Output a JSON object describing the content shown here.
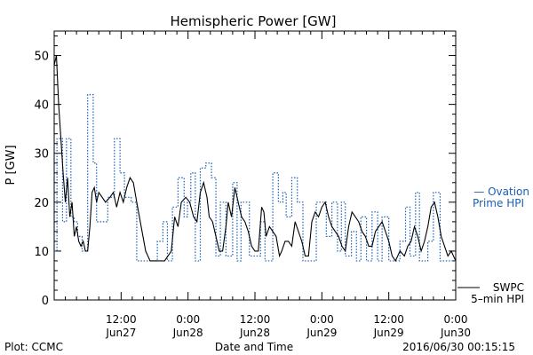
{
  "chart_data": {
    "type": "line",
    "title": "Hemispheric Power [GW]",
    "ylabel": "P [GW]",
    "xlabel": "Date and Time",
    "ylim": [
      0,
      55
    ],
    "yticks": [
      0,
      10,
      20,
      30,
      40,
      50
    ],
    "xlim": [
      0,
      72
    ],
    "xticks": [
      {
        "hour": 12,
        "time": "12:00",
        "date": "Jun27"
      },
      {
        "hour": 24,
        "time": "0:00",
        "date": "Jun28"
      },
      {
        "hour": 36,
        "time": "12:00",
        "date": "Jun28"
      },
      {
        "hour": 48,
        "time": "0:00",
        "date": "Jun29"
      },
      {
        "hour": 60,
        "time": "12:00",
        "date": "Jun29"
      },
      {
        "hour": 72,
        "time": "0:00",
        "date": "Jun30"
      }
    ],
    "series": [
      {
        "name": "Ovation Prime HPI",
        "legend": [
          "— Ovation",
          "Prime HPI"
        ],
        "color": "#1a5fb4",
        "style": "dotted-step",
        "points": [
          [
            0.0,
            10
          ],
          [
            0.5,
            33
          ],
          [
            1.0,
            33
          ],
          [
            1.5,
            16
          ],
          [
            2.2,
            33
          ],
          [
            3.0,
            17
          ],
          [
            3.6,
            16
          ],
          [
            4.2,
            13
          ],
          [
            5.0,
            10
          ],
          [
            6.0,
            42
          ],
          [
            7.0,
            28
          ],
          [
            7.6,
            16
          ],
          [
            8.8,
            16
          ],
          [
            9.6,
            21
          ],
          [
            10.8,
            33
          ],
          [
            11.8,
            26
          ],
          [
            12.6,
            21
          ],
          [
            13.8,
            20
          ],
          [
            14.8,
            8
          ],
          [
            17.2,
            8
          ],
          [
            18.5,
            12
          ],
          [
            19.5,
            16
          ],
          [
            20.3,
            8
          ],
          [
            21.2,
            19
          ],
          [
            22.2,
            25
          ],
          [
            23.3,
            17
          ],
          [
            23.9,
            20
          ],
          [
            24.5,
            26
          ],
          [
            25.3,
            8
          ],
          [
            26.2,
            27
          ],
          [
            27.2,
            28
          ],
          [
            28.2,
            25
          ],
          [
            29.0,
            9
          ],
          [
            29.8,
            20
          ],
          [
            30.8,
            9
          ],
          [
            32.0,
            24
          ],
          [
            32.8,
            8
          ],
          [
            33.5,
            20
          ],
          [
            34.3,
            20
          ],
          [
            35.0,
            9
          ],
          [
            36.0,
            9
          ],
          [
            37.0,
            16
          ],
          [
            37.8,
            8
          ],
          [
            39.2,
            26
          ],
          [
            40.2,
            20
          ],
          [
            41.0,
            22
          ],
          [
            41.6,
            17
          ],
          [
            42.6,
            25
          ],
          [
            43.6,
            20
          ],
          [
            44.6,
            8
          ],
          [
            46.3,
            8
          ],
          [
            47.0,
            20
          ],
          [
            48.0,
            20
          ],
          [
            48.8,
            13
          ],
          [
            49.8,
            20
          ],
          [
            50.8,
            10
          ],
          [
            51.5,
            20
          ],
          [
            52.2,
            9
          ],
          [
            53.3,
            14
          ],
          [
            54.2,
            8
          ],
          [
            55.0,
            17
          ],
          [
            56.0,
            8
          ],
          [
            57.0,
            18
          ],
          [
            58.0,
            8
          ],
          [
            58.8,
            17
          ],
          [
            60.0,
            8
          ],
          [
            61.3,
            8
          ],
          [
            62.0,
            12
          ],
          [
            63.0,
            19
          ],
          [
            63.8,
            9
          ],
          [
            64.8,
            22
          ],
          [
            65.5,
            8
          ],
          [
            67.0,
            12
          ],
          [
            68.0,
            22
          ],
          [
            69.2,
            8
          ],
          [
            72.0,
            8
          ]
        ]
      },
      {
        "name": "SWPC 5-min HPI",
        "legend": [
          "SWPC",
          "5–min HPI"
        ],
        "color": "#000000",
        "style": "solid",
        "points": [
          [
            0.0,
            48
          ],
          [
            0.4,
            50
          ],
          [
            0.8,
            40
          ],
          [
            1.2,
            33
          ],
          [
            1.6,
            26
          ],
          [
            2.0,
            20
          ],
          [
            2.4,
            25
          ],
          [
            2.8,
            17
          ],
          [
            3.2,
            20
          ],
          [
            3.6,
            13
          ],
          [
            4.0,
            15
          ],
          [
            4.4,
            12
          ],
          [
            4.8,
            11
          ],
          [
            5.2,
            12
          ],
          [
            5.6,
            10
          ],
          [
            6.0,
            10
          ],
          [
            6.4,
            15
          ],
          [
            6.8,
            22
          ],
          [
            7.2,
            23
          ],
          [
            7.6,
            20
          ],
          [
            8.0,
            22
          ],
          [
            8.6,
            21
          ],
          [
            9.2,
            20
          ],
          [
            10.0,
            21
          ],
          [
            10.6,
            22
          ],
          [
            11.2,
            19
          ],
          [
            11.8,
            22
          ],
          [
            12.4,
            20
          ],
          [
            13.0,
            23
          ],
          [
            13.6,
            25
          ],
          [
            14.2,
            24
          ],
          [
            14.8,
            20
          ],
          [
            15.6,
            15
          ],
          [
            16.4,
            10
          ],
          [
            17.2,
            8
          ],
          [
            18.5,
            8
          ],
          [
            19.8,
            8
          ],
          [
            20.4,
            9
          ],
          [
            21.0,
            10
          ],
          [
            21.6,
            17
          ],
          [
            22.2,
            15
          ],
          [
            22.8,
            20
          ],
          [
            23.6,
            21
          ],
          [
            24.3,
            20
          ],
          [
            25.0,
            17
          ],
          [
            25.6,
            16
          ],
          [
            26.2,
            22
          ],
          [
            26.8,
            24
          ],
          [
            27.4,
            21
          ],
          [
            27.8,
            17
          ],
          [
            28.4,
            16
          ],
          [
            29.0,
            13
          ],
          [
            29.6,
            10
          ],
          [
            30.2,
            10
          ],
          [
            30.8,
            15
          ],
          [
            31.2,
            20
          ],
          [
            31.8,
            17
          ],
          [
            32.4,
            23
          ],
          [
            33.0,
            20
          ],
          [
            33.6,
            17
          ],
          [
            34.2,
            16
          ],
          [
            34.8,
            14
          ],
          [
            35.4,
            11
          ],
          [
            36.0,
            10
          ],
          [
            36.6,
            10
          ],
          [
            37.2,
            19
          ],
          [
            37.6,
            18
          ],
          [
            38.0,
            13
          ],
          [
            38.6,
            15
          ],
          [
            39.2,
            14
          ],
          [
            39.8,
            13
          ],
          [
            40.4,
            9
          ],
          [
            40.8,
            10
          ],
          [
            41.4,
            12
          ],
          [
            42.0,
            12
          ],
          [
            42.6,
            11
          ],
          [
            43.2,
            16
          ],
          [
            43.8,
            14
          ],
          [
            44.4,
            12
          ],
          [
            45.0,
            9
          ],
          [
            45.6,
            9
          ],
          [
            46.2,
            16
          ],
          [
            46.8,
            18
          ],
          [
            47.4,
            17
          ],
          [
            48.0,
            19
          ],
          [
            48.6,
            20
          ],
          [
            49.2,
            17
          ],
          [
            49.8,
            15
          ],
          [
            50.4,
            14
          ],
          [
            51.0,
            13
          ],
          [
            51.6,
            11
          ],
          [
            52.2,
            10
          ],
          [
            52.8,
            15
          ],
          [
            53.4,
            18
          ],
          [
            54.0,
            17
          ],
          [
            54.6,
            16
          ],
          [
            55.2,
            14
          ],
          [
            55.8,
            13
          ],
          [
            56.4,
            11
          ],
          [
            57.0,
            11
          ],
          [
            57.6,
            14
          ],
          [
            58.2,
            15
          ],
          [
            58.8,
            16
          ],
          [
            59.4,
            14
          ],
          [
            60.0,
            12
          ],
          [
            60.6,
            9
          ],
          [
            61.2,
            8
          ],
          [
            62.0,
            10
          ],
          [
            62.8,
            9
          ],
          [
            63.4,
            11
          ],
          [
            64.0,
            12
          ],
          [
            64.6,
            15
          ],
          [
            65.2,
            13
          ],
          [
            65.8,
            10
          ],
          [
            66.4,
            12
          ],
          [
            67.0,
            15
          ],
          [
            67.6,
            19
          ],
          [
            68.2,
            20
          ],
          [
            68.8,
            17
          ],
          [
            69.4,
            13
          ],
          [
            70.0,
            11
          ],
          [
            70.6,
            9
          ],
          [
            71.2,
            10
          ],
          [
            72.0,
            8
          ]
        ]
      }
    ],
    "grid": false,
    "legend_position": "right"
  },
  "footer": {
    "plot_credit": "Plot: CCMC",
    "timestamp": "2016/06/30 00:15:15"
  }
}
